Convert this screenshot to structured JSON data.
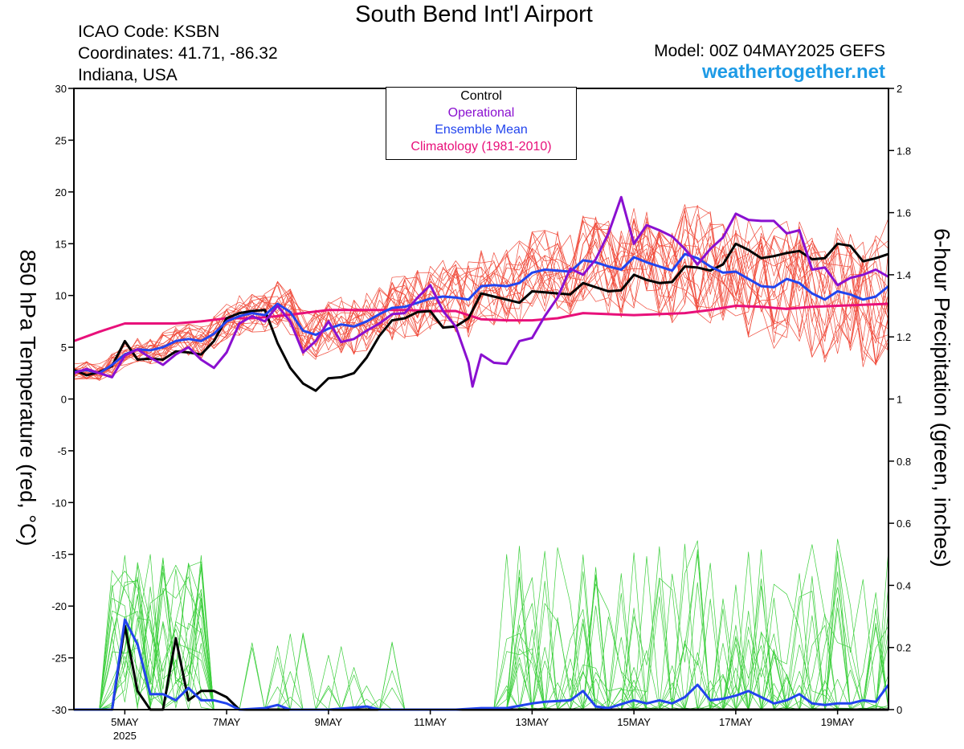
{
  "header": {
    "title": "South Bend Int'l Airport",
    "icao": "ICAO Code: KSBN",
    "coords": "Coordinates: 41.71, -86.32",
    "state": "Indiana, USA",
    "model": "Model: 00Z 04MAY2025 GEFS",
    "site": "weathertogether.net"
  },
  "legend": {
    "control": "Control",
    "operational": "Operational",
    "mean": "Ensemble Mean",
    "climo": "Climatology (1981-2010)"
  },
  "colors": {
    "control": "#000000",
    "operational": "#8a10d0",
    "mean": "#2244ee",
    "climo": "#e8107a",
    "members_temp": "#f04a3a",
    "members_precip": "#3ccf3c",
    "site": "#1e9be6"
  },
  "chart_data": {
    "type": "line",
    "ylabel_left": "850 hPa Temperature (red, °C)",
    "ylabel_right": "6-hour Precipitation (green, inches)",
    "ylim_left": [
      -30,
      30
    ],
    "ylim_right": [
      0,
      2
    ],
    "left_ticks": [
      "30",
      "25",
      "20",
      "15",
      "10",
      "5",
      "0",
      "-5",
      "-10",
      "-15",
      "-20",
      "-25",
      "-30"
    ],
    "right_ticks": [
      "2",
      "1.8",
      "1.6",
      "1.4",
      "1.2",
      "1",
      "0.8",
      "0.6",
      "0.4",
      "0.2",
      "0"
    ],
    "x_ticks": [
      {
        "day": 5,
        "label": "5MAY"
      },
      {
        "day": 7,
        "label": "7MAY"
      },
      {
        "day": 9,
        "label": "9MAY"
      },
      {
        "day": 11,
        "label": "11MAY"
      },
      {
        "day": 13,
        "label": "13MAY"
      },
      {
        "day": 15,
        "label": "15MAY"
      },
      {
        "day": 17,
        "label": "17MAY"
      },
      {
        "day": 19,
        "label": "19MAY"
      }
    ],
    "x_year": "2025",
    "x_range_days": [
      4.0,
      20.0
    ],
    "series_temperature": [
      {
        "id": "control",
        "points": [
          [
            4.0,
            2.8
          ],
          [
            4.25,
            2.3
          ],
          [
            4.5,
            2.6
          ],
          [
            4.75,
            3.2
          ],
          [
            5.0,
            5.6
          ],
          [
            5.25,
            3.8
          ],
          [
            5.5,
            3.9
          ],
          [
            5.75,
            3.8
          ],
          [
            6.0,
            4.6
          ],
          [
            6.25,
            4.5
          ],
          [
            6.5,
            4.3
          ],
          [
            6.75,
            5.6
          ],
          [
            7.0,
            7.8
          ],
          [
            7.25,
            8.3
          ],
          [
            7.5,
            8.5
          ],
          [
            7.75,
            8.6
          ],
          [
            8.0,
            5.4
          ],
          [
            8.25,
            3.0
          ],
          [
            8.5,
            1.5
          ],
          [
            8.75,
            0.8
          ],
          [
            9.0,
            2.0
          ],
          [
            9.25,
            2.1
          ],
          [
            9.5,
            2.5
          ],
          [
            9.75,
            4.0
          ],
          [
            10.0,
            6.1
          ],
          [
            10.25,
            7.6
          ],
          [
            10.5,
            7.8
          ],
          [
            10.75,
            8.4
          ],
          [
            11.0,
            8.5
          ],
          [
            11.25,
            6.9
          ],
          [
            11.5,
            7.0
          ],
          [
            11.75,
            7.8
          ],
          [
            12.0,
            10.2
          ],
          [
            12.25,
            9.9
          ],
          [
            12.5,
            9.6
          ],
          [
            12.75,
            9.3
          ],
          [
            13.0,
            10.4
          ],
          [
            13.25,
            10.3
          ],
          [
            13.5,
            10.2
          ],
          [
            13.75,
            10.1
          ],
          [
            14.0,
            11.2
          ],
          [
            14.25,
            10.8
          ],
          [
            14.5,
            10.4
          ],
          [
            14.75,
            10.5
          ],
          [
            15.0,
            12.0
          ],
          [
            15.25,
            11.5
          ],
          [
            15.5,
            11.2
          ],
          [
            15.75,
            11.3
          ],
          [
            16.0,
            12.8
          ],
          [
            16.25,
            12.7
          ],
          [
            16.5,
            12.4
          ],
          [
            16.75,
            13.0
          ],
          [
            17.0,
            15.0
          ],
          [
            17.25,
            14.4
          ],
          [
            17.5,
            13.6
          ],
          [
            17.75,
            13.8
          ],
          [
            18.0,
            14.1
          ],
          [
            18.25,
            14.3
          ],
          [
            18.5,
            13.5
          ],
          [
            18.75,
            13.6
          ],
          [
            19.0,
            15.0
          ],
          [
            19.25,
            14.8
          ],
          [
            19.5,
            13.3
          ],
          [
            19.75,
            13.6
          ],
          [
            20.0,
            14.0
          ]
        ]
      },
      {
        "id": "operational",
        "points": [
          [
            4.0,
            2.5
          ],
          [
            4.25,
            2.9
          ],
          [
            4.5,
            2.5
          ],
          [
            4.75,
            2.1
          ],
          [
            5.0,
            4.2
          ],
          [
            5.25,
            4.8
          ],
          [
            5.5,
            4.0
          ],
          [
            5.75,
            3.3
          ],
          [
            6.0,
            4.3
          ],
          [
            6.25,
            5.0
          ],
          [
            6.5,
            3.8
          ],
          [
            6.75,
            3.0
          ],
          [
            7.0,
            4.5
          ],
          [
            7.25,
            7.3
          ],
          [
            7.5,
            8.0
          ],
          [
            7.75,
            7.5
          ],
          [
            8.0,
            9.0
          ],
          [
            8.25,
            7.5
          ],
          [
            8.5,
            4.5
          ],
          [
            8.75,
            5.6
          ],
          [
            9.0,
            7.5
          ],
          [
            9.25,
            5.5
          ],
          [
            9.5,
            5.8
          ],
          [
            9.75,
            6.6
          ],
          [
            10.0,
            7.3
          ],
          [
            10.25,
            8.2
          ],
          [
            10.5,
            8.3
          ],
          [
            10.75,
            9.8
          ],
          [
            11.0,
            11.0
          ],
          [
            11.25,
            8.5
          ],
          [
            11.5,
            7.0
          ],
          [
            11.75,
            3.5
          ],
          [
            11.83,
            1.2
          ],
          [
            12.0,
            4.3
          ],
          [
            12.25,
            3.5
          ],
          [
            12.5,
            3.4
          ],
          [
            12.75,
            5.6
          ],
          [
            13.0,
            5.9
          ],
          [
            13.25,
            8.0
          ],
          [
            13.5,
            9.8
          ],
          [
            13.75,
            12.6
          ],
          [
            14.0,
            12.0
          ],
          [
            14.25,
            13.5
          ],
          [
            14.5,
            16.0
          ],
          [
            14.75,
            19.5
          ],
          [
            15.0,
            15.0
          ],
          [
            15.25,
            16.8
          ],
          [
            15.5,
            16.3
          ],
          [
            15.75,
            15.7
          ],
          [
            16.0,
            14.5
          ],
          [
            16.25,
            13.0
          ],
          [
            16.5,
            14.5
          ],
          [
            16.75,
            15.6
          ],
          [
            17.0,
            17.9
          ],
          [
            17.25,
            17.3
          ],
          [
            17.5,
            17.2
          ],
          [
            17.75,
            17.2
          ],
          [
            18.0,
            16.0
          ],
          [
            18.25,
            16.3
          ],
          [
            18.5,
            12.5
          ],
          [
            18.75,
            12.7
          ],
          [
            19.0,
            11.0
          ],
          [
            19.25,
            11.7
          ],
          [
            19.5,
            12.0
          ],
          [
            19.75,
            12.5
          ],
          [
            20.0,
            11.8
          ]
        ]
      },
      {
        "id": "mean",
        "points": [
          [
            4.0,
            2.6
          ],
          [
            4.25,
            2.8
          ],
          [
            4.5,
            2.5
          ],
          [
            4.75,
            3.3
          ],
          [
            5.0,
            4.3
          ],
          [
            5.25,
            4.8
          ],
          [
            5.5,
            4.7
          ],
          [
            5.75,
            5.0
          ],
          [
            6.0,
            5.6
          ],
          [
            6.25,
            5.8
          ],
          [
            6.5,
            5.6
          ],
          [
            6.75,
            6.3
          ],
          [
            7.0,
            7.5
          ],
          [
            7.25,
            8.0
          ],
          [
            7.5,
            8.3
          ],
          [
            7.75,
            8.1
          ],
          [
            8.0,
            9.2
          ],
          [
            8.25,
            8.4
          ],
          [
            8.5,
            6.6
          ],
          [
            8.75,
            6.2
          ],
          [
            9.0,
            6.8
          ],
          [
            9.25,
            7.2
          ],
          [
            9.5,
            7.0
          ],
          [
            9.75,
            7.5
          ],
          [
            10.0,
            8.2
          ],
          [
            10.25,
            8.8
          ],
          [
            10.5,
            8.9
          ],
          [
            10.75,
            9.3
          ],
          [
            11.0,
            9.7
          ],
          [
            11.25,
            9.9
          ],
          [
            11.5,
            9.8
          ],
          [
            11.75,
            9.6
          ],
          [
            12.0,
            10.9
          ],
          [
            12.25,
            11.0
          ],
          [
            12.5,
            10.9
          ],
          [
            12.75,
            11.2
          ],
          [
            13.0,
            12.2
          ],
          [
            13.25,
            12.5
          ],
          [
            13.5,
            12.4
          ],
          [
            13.75,
            12.3
          ],
          [
            14.0,
            13.4
          ],
          [
            14.25,
            13.2
          ],
          [
            14.5,
            12.8
          ],
          [
            14.75,
            12.5
          ],
          [
            15.0,
            13.7
          ],
          [
            15.25,
            13.2
          ],
          [
            15.5,
            12.8
          ],
          [
            15.75,
            12.4
          ],
          [
            16.0,
            14.0
          ],
          [
            16.25,
            13.6
          ],
          [
            16.5,
            12.8
          ],
          [
            16.75,
            12.2
          ],
          [
            17.0,
            12.3
          ],
          [
            17.25,
            11.6
          ],
          [
            17.5,
            10.9
          ],
          [
            17.75,
            10.8
          ],
          [
            18.0,
            11.6
          ],
          [
            18.25,
            11.2
          ],
          [
            18.5,
            10.2
          ],
          [
            18.75,
            9.6
          ],
          [
            19.0,
            10.4
          ],
          [
            19.25,
            10.1
          ],
          [
            19.5,
            9.6
          ],
          [
            19.75,
            9.9
          ],
          [
            20.0,
            10.9
          ]
        ]
      },
      {
        "id": "climo",
        "points": [
          [
            4.0,
            5.6
          ],
          [
            4.5,
            6.5
          ],
          [
            5.0,
            7.3
          ],
          [
            5.5,
            7.3
          ],
          [
            6.0,
            7.3
          ],
          [
            6.5,
            7.5
          ],
          [
            7.0,
            7.8
          ],
          [
            7.5,
            7.8
          ],
          [
            8.0,
            8.0
          ],
          [
            8.5,
            8.3
          ],
          [
            9.0,
            8.6
          ],
          [
            9.5,
            8.6
          ],
          [
            10.0,
            8.6
          ],
          [
            10.5,
            8.6
          ],
          [
            11.0,
            8.5
          ],
          [
            11.5,
            8.5
          ],
          [
            12.0,
            7.7
          ],
          [
            12.5,
            7.6
          ],
          [
            13.0,
            7.6
          ],
          [
            13.5,
            7.8
          ],
          [
            14.0,
            8.3
          ],
          [
            14.5,
            8.2
          ],
          [
            15.0,
            8.1
          ],
          [
            15.5,
            8.2
          ],
          [
            16.0,
            8.3
          ],
          [
            16.5,
            8.6
          ],
          [
            17.0,
            9.0
          ],
          [
            17.5,
            8.9
          ],
          [
            18.0,
            8.7
          ],
          [
            18.5,
            8.9
          ],
          [
            19.0,
            9.0
          ],
          [
            19.5,
            9.1
          ],
          [
            20.0,
            9.2
          ]
        ]
      }
    ],
    "series_precip": [
      {
        "id": "control",
        "points": [
          [
            4.0,
            0
          ],
          [
            4.5,
            0
          ],
          [
            4.75,
            0
          ],
          [
            5.0,
            0.27
          ],
          [
            5.25,
            0.06
          ],
          [
            5.5,
            0
          ],
          [
            5.75,
            0
          ],
          [
            6.0,
            0.23
          ],
          [
            6.25,
            0.03
          ],
          [
            6.5,
            0.06
          ],
          [
            6.75,
            0.06
          ],
          [
            7.0,
            0.04
          ],
          [
            7.25,
            0
          ],
          [
            7.5,
            0
          ],
          [
            20.0,
            0
          ]
        ]
      },
      {
        "id": "mean",
        "points": [
          [
            4.0,
            0
          ],
          [
            4.5,
            0
          ],
          [
            4.75,
            0
          ],
          [
            5.0,
            0.29
          ],
          [
            5.25,
            0.21
          ],
          [
            5.5,
            0.05
          ],
          [
            5.75,
            0.05
          ],
          [
            6.0,
            0.03
          ],
          [
            6.25,
            0.07
          ],
          [
            6.5,
            0.03
          ],
          [
            6.75,
            0.03
          ],
          [
            7.0,
            0.02
          ],
          [
            7.25,
            0
          ],
          [
            7.75,
            0.005
          ],
          [
            8.0,
            0.015
          ],
          [
            8.25,
            0
          ],
          [
            9.0,
            0
          ],
          [
            9.75,
            0.01
          ],
          [
            10.0,
            0
          ],
          [
            11.5,
            0
          ],
          [
            12.0,
            0.005
          ],
          [
            12.5,
            0.005
          ],
          [
            13.0,
            0.02
          ],
          [
            13.25,
            0.025
          ],
          [
            13.75,
            0.03
          ],
          [
            14.0,
            0.06
          ],
          [
            14.25,
            0.01
          ],
          [
            14.5,
            0.005
          ],
          [
            15.0,
            0.03
          ],
          [
            15.25,
            0.02
          ],
          [
            15.5,
            0.03
          ],
          [
            15.75,
            0.02
          ],
          [
            16.0,
            0.04
          ],
          [
            16.25,
            0.08
          ],
          [
            16.5,
            0.03
          ],
          [
            16.75,
            0.035
          ],
          [
            17.0,
            0.045
          ],
          [
            17.25,
            0.06
          ],
          [
            17.5,
            0.04
          ],
          [
            17.75,
            0.02
          ],
          [
            18.0,
            0.03
          ],
          [
            18.25,
            0.05
          ],
          [
            18.5,
            0.02
          ],
          [
            18.75,
            0.015
          ],
          [
            19.0,
            0.02
          ],
          [
            19.25,
            0.02
          ],
          [
            19.5,
            0.03
          ],
          [
            19.75,
            0.025
          ],
          [
            20.0,
            0.08
          ]
        ]
      }
    ],
    "members_temp_count": 20,
    "members_precip_count": 20
  }
}
